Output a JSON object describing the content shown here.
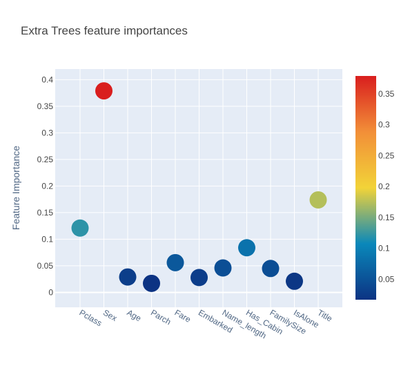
{
  "chart_data": {
    "type": "scatter",
    "title": "Extra Trees  feature importances",
    "xlabel": "",
    "ylabel": "Feature Importance",
    "categories": [
      "Pclass",
      "Sex",
      "Age",
      "Parch",
      "Fare",
      "Embarked",
      "Name_length",
      "Has_Cabin",
      "FamilySize",
      "IsAlone",
      "Title"
    ],
    "values": [
      0.121,
      0.379,
      0.029,
      0.017,
      0.056,
      0.028,
      0.046,
      0.084,
      0.045,
      0.021,
      0.174
    ],
    "ylim": [
      -0.028,
      0.42
    ],
    "yticks": [
      0,
      0.05,
      0.1,
      0.15,
      0.2,
      0.25,
      0.3,
      0.35,
      0.4
    ],
    "ytick_labels": [
      "0",
      "0.05",
      "0.1",
      "0.15",
      "0.2",
      "0.25",
      "0.3",
      "0.35",
      "0.4"
    ],
    "grid": true,
    "colorbar": {
      "colorscale": "Portland",
      "cmin": 0.017,
      "cmax": 0.379,
      "ticks": [
        0.05,
        0.1,
        0.15,
        0.2,
        0.25,
        0.3,
        0.35
      ],
      "tick_labels": [
        "0.05",
        "0.1",
        "0.15",
        "0.2",
        "0.25",
        "0.3",
        "0.35"
      ]
    }
  }
}
